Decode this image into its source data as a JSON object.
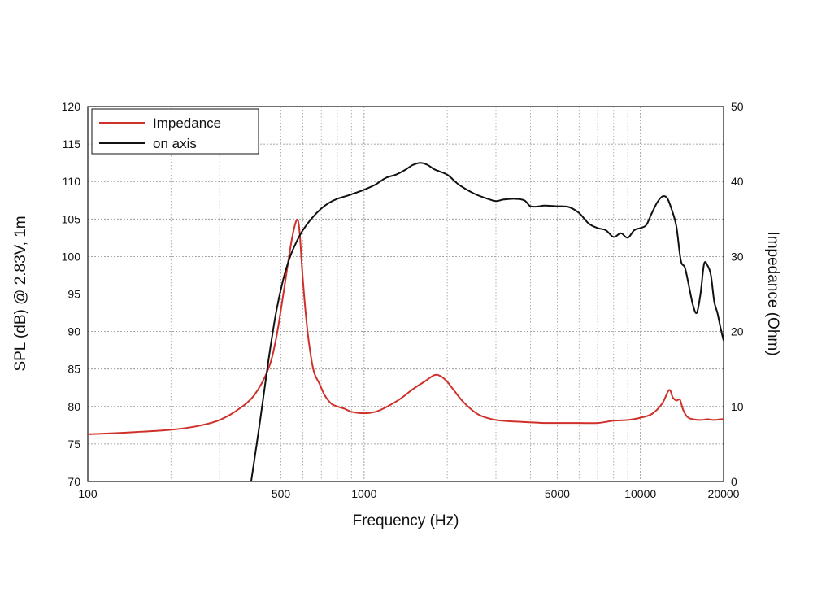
{
  "chart_data": {
    "type": "line",
    "xlabel": "Frequency (Hz)",
    "ylabel_left": "SPL (dB) @ 2.83V, 1m",
    "ylabel_right": "Impedance (Ohm)",
    "x_scale": "log",
    "xlim": [
      100,
      20000
    ],
    "ylim_left": [
      70,
      120
    ],
    "ylim_right": [
      0,
      50
    ],
    "x_ticks": [
      100,
      500,
      1000,
      5000,
      10000,
      20000
    ],
    "x_tick_labels": [
      "100",
      "500",
      "1000",
      "5000",
      "10000",
      "20000"
    ],
    "y_left_ticks": [
      70,
      75,
      80,
      85,
      90,
      95,
      100,
      105,
      110,
      115,
      120
    ],
    "y_left_tick_labels": [
      "70",
      "75",
      "80",
      "85",
      "90",
      "95",
      "100",
      "105",
      "110",
      "115",
      "120"
    ],
    "y_right_ticks": [
      0,
      10,
      20,
      30,
      40,
      50
    ],
    "y_right_tick_labels": [
      "0",
      "10",
      "20",
      "30",
      "40",
      "50"
    ],
    "grid": true,
    "legend_position": "top-left",
    "series": [
      {
        "name": "Impedance",
        "axis": "right",
        "color": "#d0302a",
        "x": [
          100,
          150,
          200,
          250,
          300,
          350,
          400,
          450,
          480,
          510,
          540,
          560,
          575,
          585,
          600,
          620,
          640,
          660,
          690,
          720,
          760,
          800,
          850,
          900,
          1000,
          1100,
          1200,
          1350,
          1500,
          1650,
          1800,
          1900,
          2000,
          2100,
          2300,
          2600,
          3000,
          3500,
          4000,
          4500,
          5000,
          6000,
          7000,
          8000,
          9000,
          10000,
          11000,
          12000,
          12700,
          13100,
          13500,
          13900,
          14300,
          14800,
          15500,
          16500,
          17500,
          18500,
          19500,
          20000
        ],
        "values": [
          6.3,
          6.6,
          6.9,
          7.4,
          8.2,
          9.6,
          11.5,
          15.0,
          19.0,
          25.0,
          31.0,
          34.0,
          34.9,
          33.0,
          27.0,
          21.0,
          17.0,
          14.5,
          13.0,
          11.5,
          10.4,
          10.0,
          9.7,
          9.3,
          9.1,
          9.3,
          9.9,
          11.0,
          12.3,
          13.3,
          14.2,
          14.0,
          13.3,
          12.3,
          10.5,
          8.9,
          8.2,
          8.0,
          7.9,
          7.8,
          7.8,
          7.8,
          7.8,
          8.1,
          8.2,
          8.5,
          9.0,
          10.4,
          12.2,
          11.2,
          10.8,
          10.9,
          9.5,
          8.6,
          8.3,
          8.2,
          8.3,
          8.2,
          8.3,
          8.3
        ]
      },
      {
        "name": "on axis",
        "axis": "left",
        "color": "#111111",
        "x": [
          390,
          420,
          450,
          480,
          510,
          540,
          570,
          600,
          650,
          700,
          750,
          800,
          850,
          900,
          1000,
          1100,
          1200,
          1300,
          1400,
          1500,
          1600,
          1700,
          1800,
          2000,
          2200,
          2500,
          2800,
          3000,
          3200,
          3500,
          3800,
          4000,
          4300,
          4500,
          5000,
          5500,
          6000,
          6500,
          7000,
          7500,
          8000,
          8500,
          9000,
          9500,
          10000,
          10500,
          11000,
          11500,
          12000,
          12500,
          13000,
          13500,
          14000,
          14500,
          15000,
          15500,
          16000,
          16500,
          17000,
          17500,
          18000,
          18500,
          19000,
          19500,
          20000
        ],
        "values": [
          70.0,
          78.0,
          86.0,
          92.5,
          97.0,
          100.0,
          102.0,
          103.5,
          105.2,
          106.4,
          107.2,
          107.7,
          108.0,
          108.3,
          108.9,
          109.6,
          110.5,
          110.9,
          111.5,
          112.2,
          112.5,
          112.2,
          111.6,
          110.9,
          109.6,
          108.4,
          107.7,
          107.4,
          107.6,
          107.7,
          107.5,
          106.7,
          106.7,
          106.8,
          106.7,
          106.6,
          105.8,
          104.4,
          103.8,
          103.5,
          102.6,
          103.1,
          102.5,
          103.5,
          103.8,
          104.2,
          105.8,
          107.2,
          108.0,
          107.8,
          106.2,
          104.0,
          99.5,
          98.5,
          96.0,
          93.5,
          92.5,
          95.0,
          99.0,
          98.8,
          97.5,
          94.0,
          92.5,
          90.5,
          88.8
        ]
      }
    ]
  }
}
